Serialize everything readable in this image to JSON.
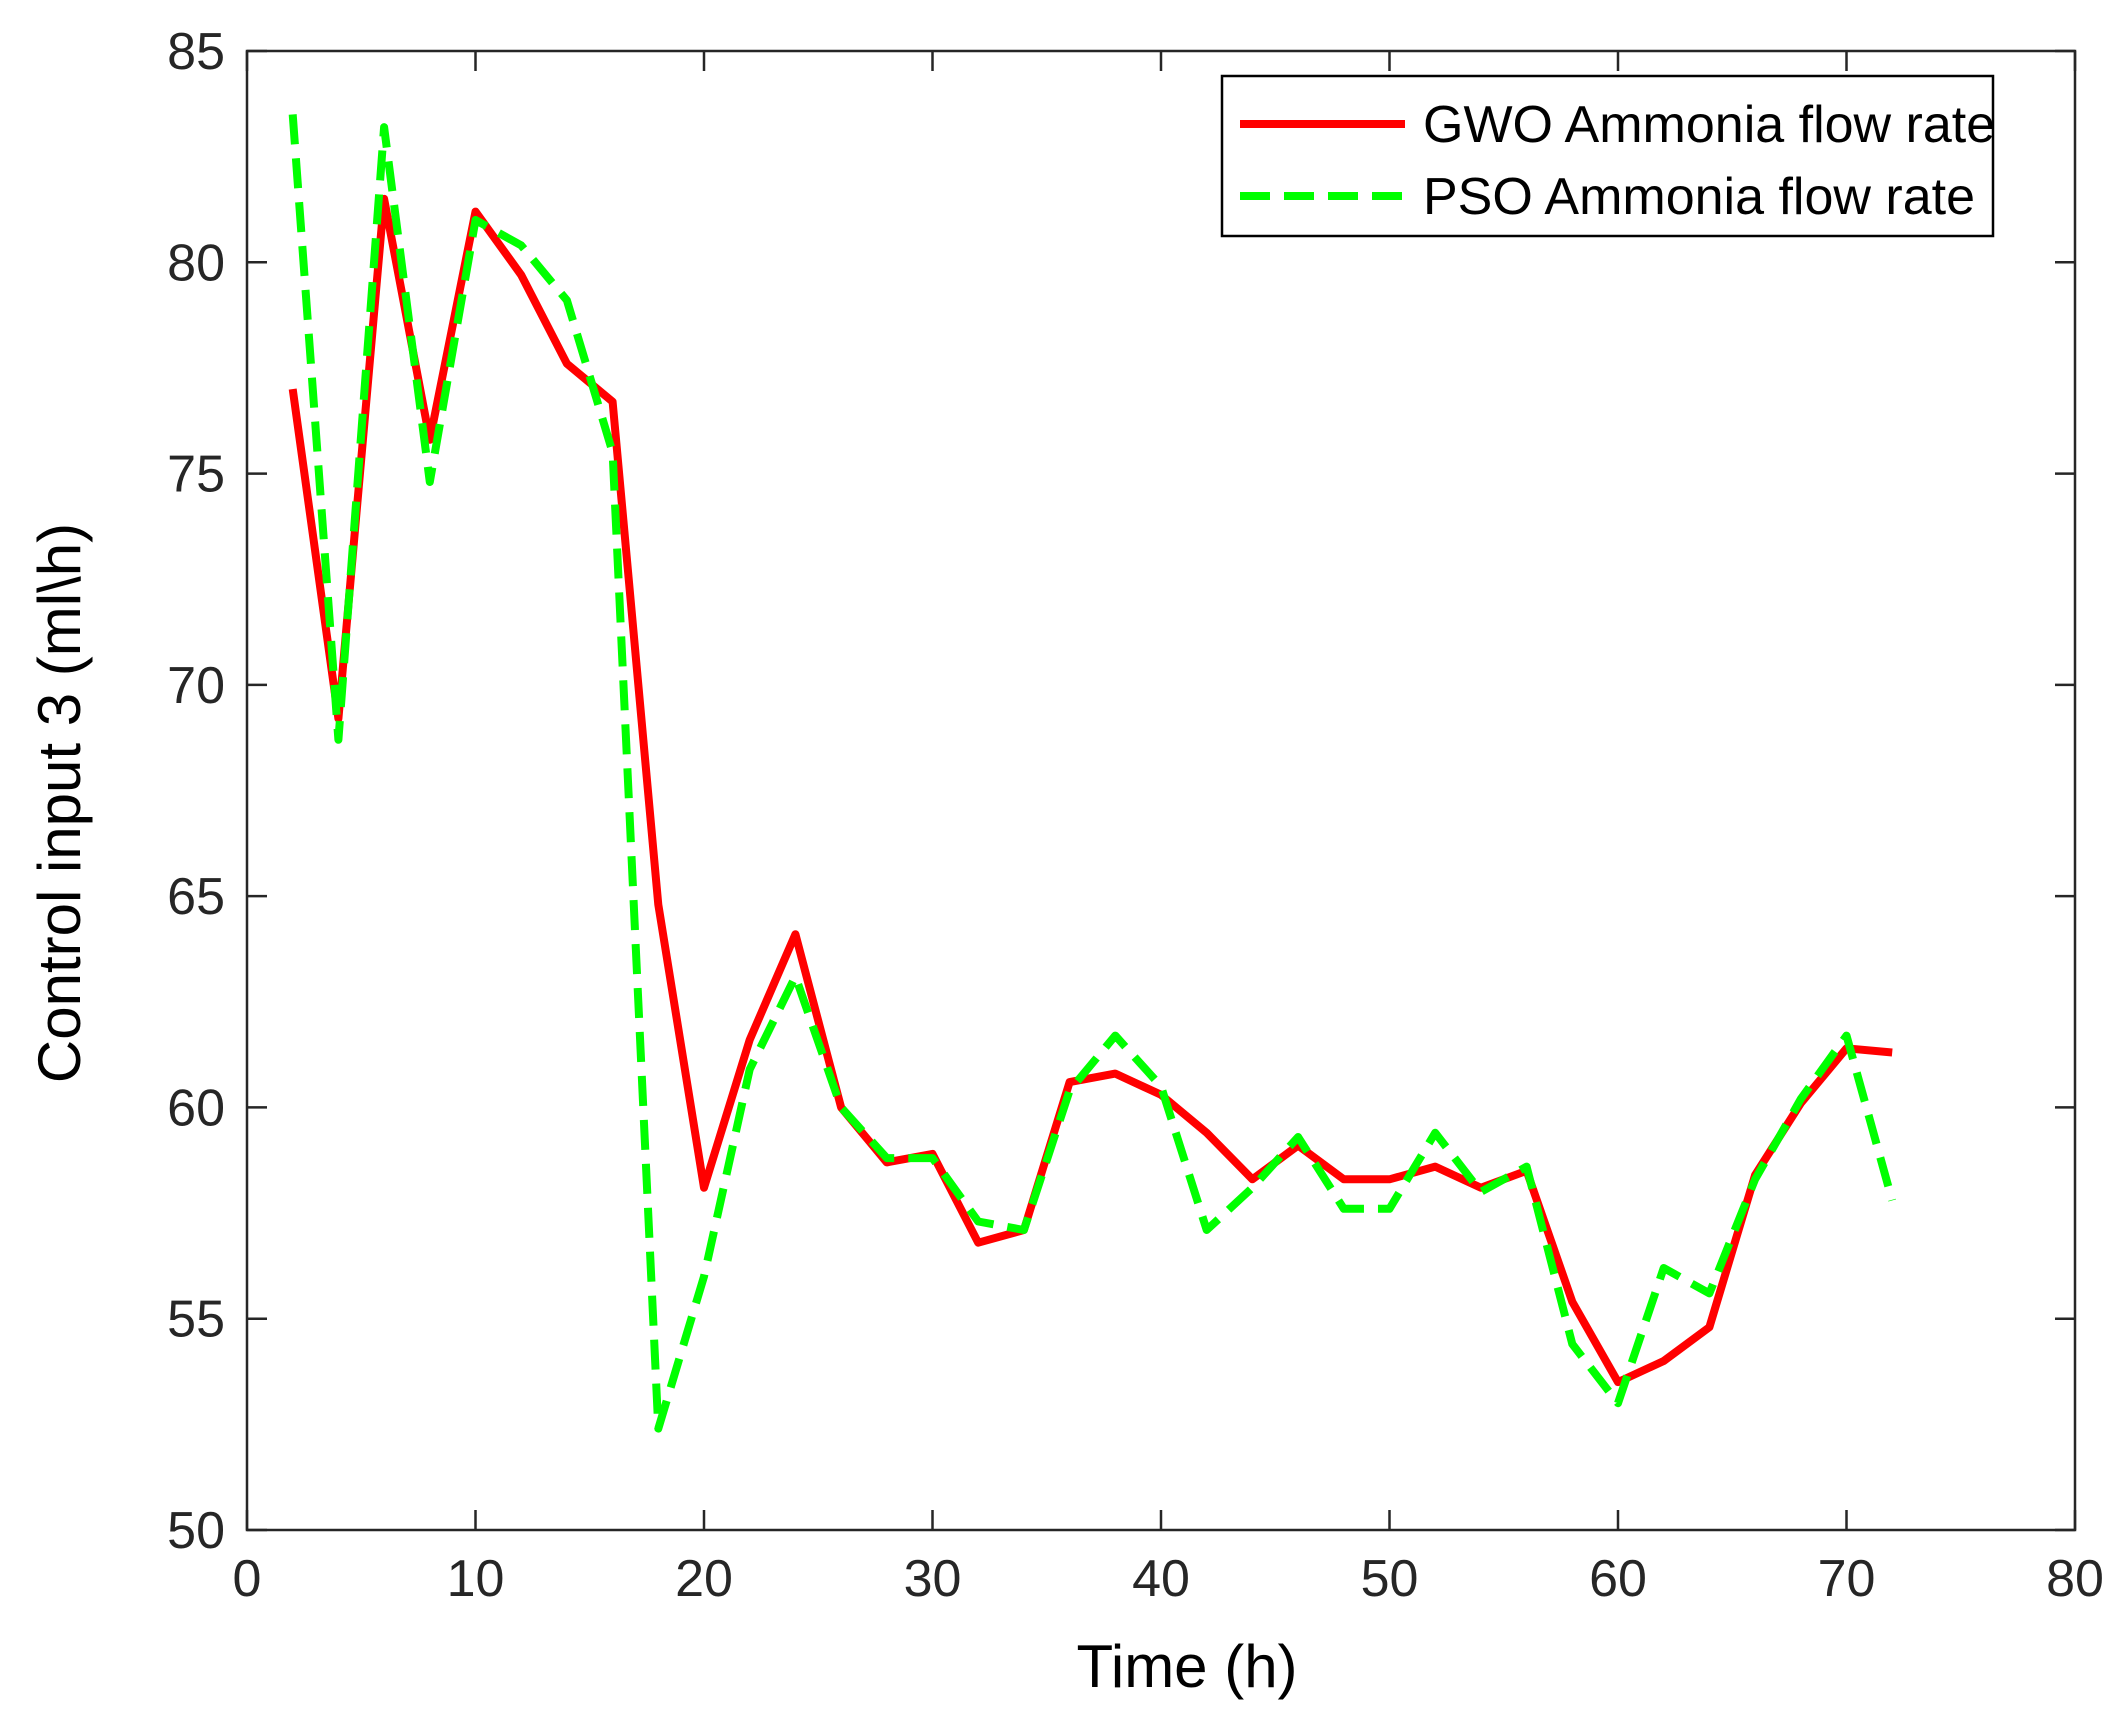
{
  "chart_data": {
    "type": "line",
    "title": "",
    "xlabel": "Time (h)",
    "ylabel": "Control input 3 (ml\\h)",
    "xlim": [
      0,
      80
    ],
    "ylim": [
      50,
      85
    ],
    "xticks": [
      0,
      10,
      20,
      30,
      40,
      50,
      60,
      70,
      80
    ],
    "yticks": [
      50,
      55,
      60,
      65,
      70,
      75,
      80,
      85
    ],
    "grid": false,
    "legend_position": "top-right",
    "series": [
      {
        "name": "GWO Ammonia flow rate",
        "color": "#ff0000",
        "style": "solid",
        "x": [
          2,
          4,
          6,
          8,
          10,
          12,
          14,
          16,
          18,
          20,
          22,
          24,
          26,
          28,
          30,
          32,
          34,
          36,
          38,
          40,
          42,
          44,
          46,
          48,
          50,
          52,
          54,
          56,
          58,
          60,
          62,
          64,
          66,
          68,
          70,
          72
        ],
        "y": [
          77.0,
          69.2,
          81.5,
          75.8,
          81.2,
          79.7,
          77.6,
          76.7,
          64.8,
          58.1,
          61.6,
          64.1,
          60.0,
          58.7,
          58.9,
          56.8,
          57.1,
          60.6,
          60.8,
          60.3,
          59.4,
          58.3,
          59.1,
          58.3,
          58.3,
          58.6,
          58.1,
          58.5,
          55.4,
          53.5,
          54.0,
          54.8,
          58.4,
          60.1,
          61.4,
          61.3
        ]
      },
      {
        "name": "PSO Ammonia flow rate",
        "color": "#00ff00",
        "style": "dashed",
        "x": [
          2,
          4,
          6,
          8,
          10,
          12,
          14,
          16,
          18,
          20,
          22,
          24,
          26,
          28,
          30,
          32,
          34,
          36,
          38,
          40,
          42,
          44,
          46,
          48,
          50,
          52,
          54,
          56,
          58,
          60,
          62,
          64,
          66,
          68,
          70,
          72
        ],
        "y": [
          83.5,
          68.7,
          83.2,
          74.8,
          81.0,
          80.4,
          79.1,
          75.5,
          52.4,
          56.0,
          60.9,
          63.1,
          60.0,
          58.8,
          58.8,
          57.3,
          57.1,
          60.4,
          61.7,
          60.5,
          57.1,
          58.1,
          59.3,
          57.6,
          57.6,
          59.4,
          58.0,
          58.6,
          54.4,
          53.0,
          56.2,
          55.6,
          58.3,
          60.2,
          61.7,
          57.8
        ]
      }
    ]
  }
}
